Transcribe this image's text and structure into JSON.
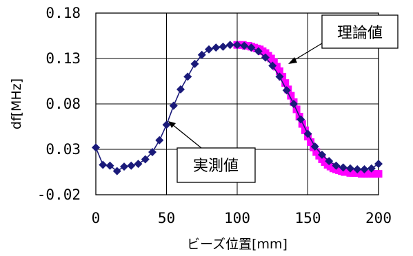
{
  "chart_data": {
    "type": "scatter",
    "title": "",
    "xlabel": "ビーズ位置[mm]",
    "ylabel": "df[MHz]",
    "xlim": [
      0,
      200
    ],
    "ylim": [
      -0.02,
      0.18
    ],
    "xticks": [
      "0",
      "50",
      "100",
      "150",
      "200"
    ],
    "yticks": [
      "0.18",
      "0.13",
      "0.08",
      "0.03",
      "-0.02"
    ],
    "grid": true,
    "legend": "none",
    "annotations": [
      "理論値",
      "実測値"
    ],
    "series": [
      {
        "name": "理論値",
        "marker": "square",
        "color": "#ff00ff",
        "x": [
          100,
          102,
          104,
          106,
          108,
          110,
          112,
          114,
          116,
          118,
          120,
          122,
          124,
          126,
          128,
          130,
          132,
          134,
          136,
          138,
          140,
          142,
          144,
          146,
          148,
          150,
          152,
          154,
          156,
          158,
          160,
          162,
          164,
          166,
          168,
          170,
          172,
          174,
          176,
          178,
          180,
          182,
          184,
          186,
          188,
          190,
          192,
          194,
          196,
          198,
          200
        ],
        "y": [
          0.145,
          0.145,
          0.145,
          0.144,
          0.144,
          0.143,
          0.142,
          0.141,
          0.14,
          0.138,
          0.136,
          0.133,
          0.13,
          0.126,
          0.121,
          0.116,
          0.11,
          0.103,
          0.096,
          0.089,
          0.082,
          0.074,
          0.066,
          0.058,
          0.051,
          0.044,
          0.038,
          0.032,
          0.027,
          0.023,
          0.019,
          0.016,
          0.013,
          0.011,
          0.009,
          0.008,
          0.007,
          0.006,
          0.005,
          0.005,
          0.004,
          0.004,
          0.004,
          0.004,
          0.003,
          0.003,
          0.003,
          0.003,
          0.003,
          0.003,
          0.003
        ]
      },
      {
        "name": "実測値",
        "marker": "diamond",
        "line": true,
        "color": "#1a1a7a",
        "x": [
          0,
          5,
          10,
          15,
          20,
          25,
          30,
          35,
          40,
          45,
          50,
          55,
          60,
          65,
          70,
          75,
          80,
          85,
          90,
          95,
          100,
          105,
          110,
          115,
          120,
          125,
          130,
          135,
          140,
          145,
          150,
          155,
          160,
          165,
          170,
          175,
          180,
          185,
          190,
          195,
          200
        ],
        "y": [
          0.032,
          0.013,
          0.012,
          0.006,
          0.011,
          0.012,
          0.014,
          0.019,
          0.027,
          0.04,
          0.057,
          0.078,
          0.096,
          0.11,
          0.124,
          0.134,
          0.14,
          0.142,
          0.143,
          0.145,
          0.145,
          0.144,
          0.142,
          0.138,
          0.131,
          0.122,
          0.11,
          0.095,
          0.08,
          0.063,
          0.047,
          0.033,
          0.024,
          0.017,
          0.012,
          0.01,
          0.009,
          0.008,
          0.008,
          0.009,
          0.014
        ]
      }
    ]
  }
}
